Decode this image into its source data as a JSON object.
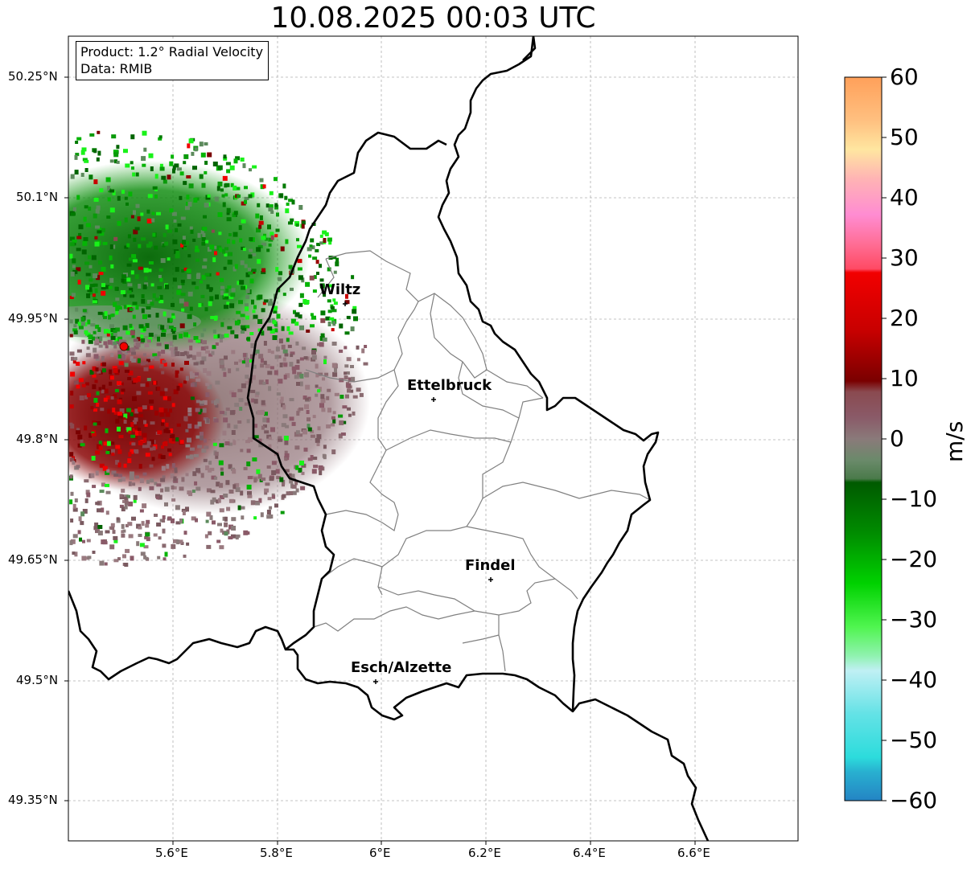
{
  "title": "10.08.2025 00:03 UTC",
  "info": {
    "product": "Product: 1.2° Radial Velocity",
    "data": "Data: RMIB"
  },
  "lat_ticks": [
    "50.25°N",
    "50.1°N",
    "49.95°N",
    "49.8°N",
    "49.65°N",
    "49.5°N",
    "49.35°N"
  ],
  "lon_ticks": [
    "5.6°E",
    "5.8°E",
    "6°E",
    "6.2°E",
    "6.4°E",
    "6.6°E"
  ],
  "cities": [
    {
      "name": "Wiltz"
    },
    {
      "name": "Ettelbruck"
    },
    {
      "name": "Findel"
    },
    {
      "name": "Esch/Alzette"
    }
  ],
  "colorbar": {
    "unit": "m/s",
    "ticks": [
      "60",
      "50",
      "40",
      "30",
      "20",
      "10",
      "0",
      "−10",
      "−20",
      "−30",
      "−40",
      "−50",
      "−60"
    ],
    "range": [
      -60,
      60
    ],
    "colors": {
      "light_blue": "#2b8cc4",
      "cyan": "#31d8df",
      "pale_cyan": "#b9eef0",
      "light_green": "#8cf2a8",
      "bright_green": "#19f219",
      "green": "#05b405",
      "dark_green": "#006400",
      "grey_green": "#5c8a5c",
      "grey": "#8a7a7a",
      "mauve": "#8a4d5a",
      "dark_red": "#7a0000",
      "red": "#f20000",
      "pink": "#ff5a78",
      "light_pink": "#ffa8d8",
      "peach": "#ffe0a0",
      "orange": "#ffa05a"
    }
  },
  "chart_data": {
    "type": "map",
    "title": "10.08.2025 00:03 UTC",
    "xlabel": "",
    "ylabel": "",
    "xlim": [
      5.4,
      6.8
    ],
    "ylim": [
      49.3,
      50.3
    ],
    "radar_site": {
      "lon": 5.505,
      "lat": 49.914
    },
    "cities": [
      {
        "name": "Wiltz",
        "lon": 5.93,
        "lat": 49.966
      },
      {
        "name": "Ettelbruck",
        "lon": 6.1,
        "lat": 49.847
      },
      {
        "name": "Findel",
        "lon": 6.21,
        "lat": 49.626
      },
      {
        "name": "Esch/Alzette",
        "lon": 5.99,
        "lat": 49.5
      }
    ],
    "grid": true
  }
}
